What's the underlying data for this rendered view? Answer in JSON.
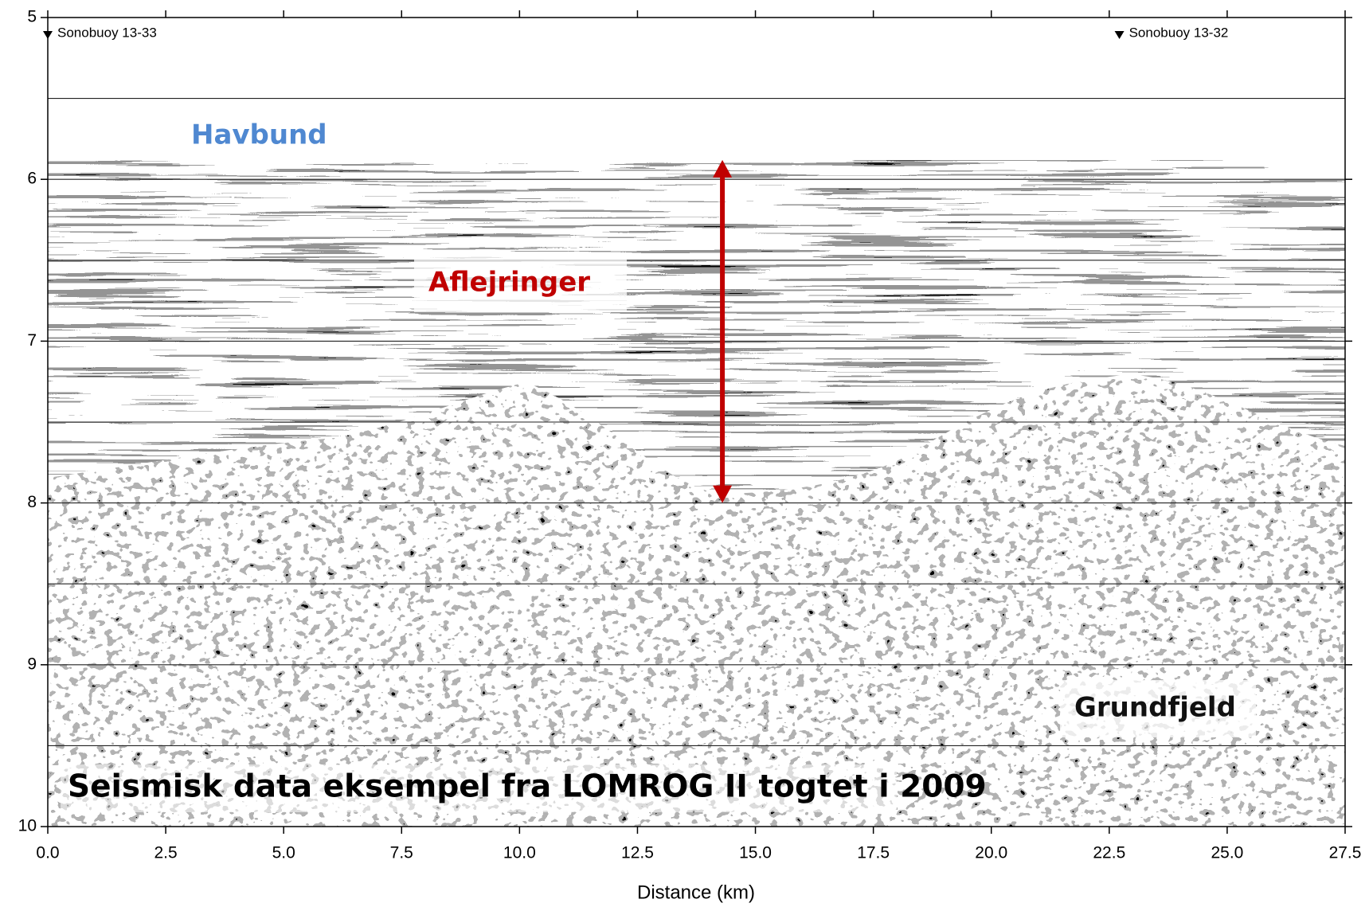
{
  "chart_data": {
    "type": "seismic",
    "title": "Seismisk data eksempel fra LOMROG II togtet i 2009",
    "x_label": "Distance (km)",
    "xlim": [
      0,
      27.5
    ],
    "xticks": [
      {
        "value": 0,
        "label": "0.0"
      },
      2.5,
      {
        "value": 5,
        "label": "5.0"
      },
      7.5,
      {
        "value": 10,
        "label": "10.0"
      },
      12.5,
      {
        "value": 15,
        "label": "15.0"
      },
      17.5,
      {
        "value": 20,
        "label": "20.0"
      },
      22.5,
      {
        "value": 25,
        "label": "25.0"
      },
      27.5
    ],
    "ylim": [
      5,
      10
    ],
    "yticks": [
      5,
      6,
      7,
      8,
      9,
      10
    ],
    "y_inverted": true,
    "grid_lines": [
      5.5,
      6,
      6.5,
      7,
      7.5,
      8,
      8.5,
      9,
      9.5
    ],
    "markers": [
      {
        "label": "Sonobuoy 13-33",
        "x": 0
      },
      {
        "label": "Sonobuoy 13-32",
        "x": 22.8
      }
    ],
    "annotations": [
      {
        "text": "Havbund",
        "color": "#4f88d1"
      },
      {
        "text": "Aflejringer",
        "color": "#c00000"
      },
      {
        "text": "Grundfjeld",
        "color": "#111111"
      }
    ],
    "arrow": {
      "x": 14.3,
      "y_start": 5.88,
      "y_end": 8.0,
      "color": "#c00000"
    }
  }
}
